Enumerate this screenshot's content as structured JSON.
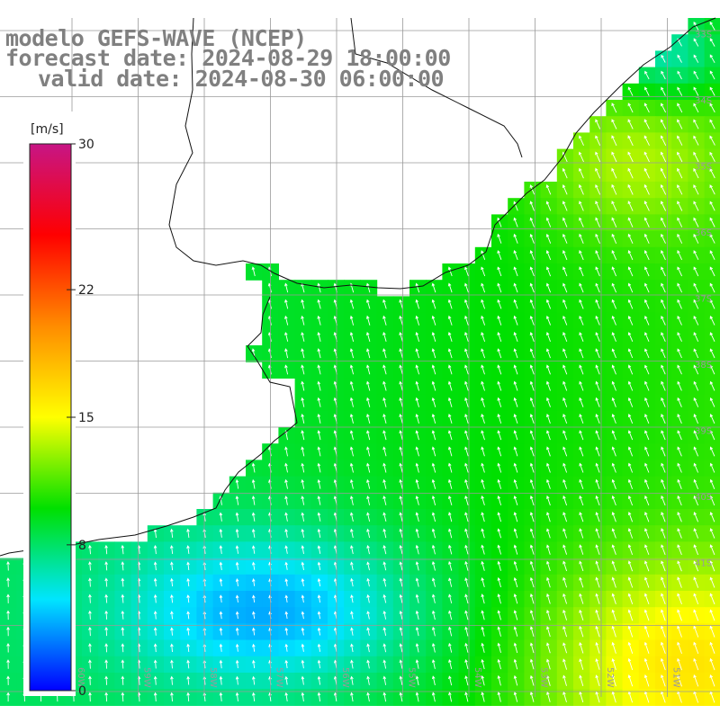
{
  "title": {
    "model": "modelo GEFS-WAVE (NCEP)",
    "forecast": "forecast date: 2024-08-29 18:00:00",
    "valid": "valid date: 2024-08-30 06:00:00"
  },
  "colorbar": {
    "unit": "[m/s]",
    "ticks": [
      {
        "value": 30,
        "label": "30"
      },
      {
        "value": 22,
        "label": "22"
      },
      {
        "value": 15,
        "label": "15"
      },
      {
        "value": 8,
        "label": "8"
      },
      {
        "value": 0,
        "label": "0"
      }
    ],
    "range": [
      0,
      30
    ],
    "colors": [
      "#0000ff",
      "#00e5ff",
      "#00e000",
      "#ffff00",
      "#ff8c00",
      "#ff0000",
      "#c71585"
    ]
  },
  "map": {
    "lon_range": [
      -61,
      -50
    ],
    "lat_range": [
      -43,
      -32
    ],
    "land_color": "#ffffff",
    "grid_color": "#9a9a9a",
    "lat_labels": [
      "33S",
      "34S",
      "35S",
      "36S",
      "37S",
      "38S",
      "39S",
      "40S",
      "41S"
    ],
    "lon_labels": [
      "60W",
      "59W",
      "58W",
      "57W",
      "56W",
      "55W",
      "54W",
      "53W",
      "52W",
      "51W"
    ]
  }
}
